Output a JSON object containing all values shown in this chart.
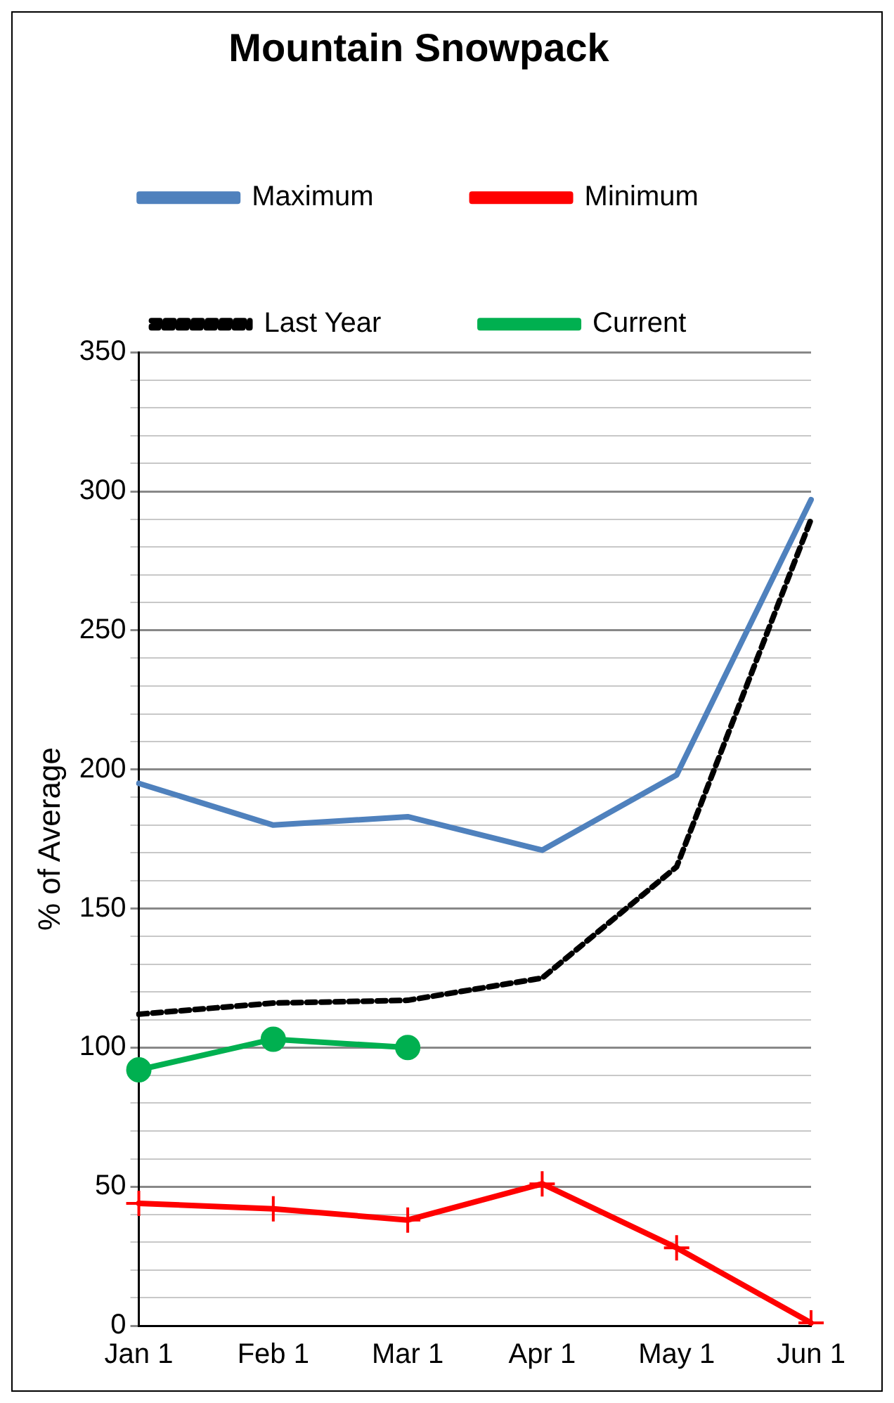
{
  "chart_data": {
    "type": "line",
    "title": "Mountain Snowpack",
    "ylabel": "% of Average",
    "categories": [
      "Jan 1",
      "Feb 1",
      "Mar 1",
      "Apr 1",
      "May 1",
      "Jun 1"
    ],
    "series": [
      {
        "name": "Maximum",
        "color": "#4f81bd",
        "values": [
          195,
          180,
          183,
          171,
          198,
          297
        ],
        "marker": "none",
        "line_style": "solid"
      },
      {
        "name": "Minimum",
        "color": "#ff0000",
        "values": [
          44,
          42,
          38,
          51,
          28,
          1
        ],
        "marker": "cross",
        "line_style": "solid"
      },
      {
        "name": "Last Year",
        "color": "#000000",
        "values": [
          112,
          116,
          117,
          125,
          165,
          290
        ],
        "marker": "none",
        "line_style": "dashed"
      },
      {
        "name": "Current",
        "color": "#00b050",
        "values": [
          92,
          103,
          100,
          null,
          null,
          null
        ],
        "marker": "circle",
        "line_style": "solid"
      }
    ],
    "ylim": [
      0,
      350
    ],
    "yticks": [
      0,
      {
        "value": 10,
        "label": null
      },
      {
        "value": 20,
        "label": null
      },
      {
        "value": 30,
        "label": null
      },
      {
        "value": 40,
        "label": null
      },
      50,
      {
        "value": 60,
        "label": null
      },
      {
        "value": 70,
        "label": null
      },
      {
        "value": 80,
        "label": null
      },
      {
        "value": 90,
        "label": null
      },
      100,
      {
        "value": 110,
        "label": null
      },
      {
        "value": 120,
        "label": null
      },
      {
        "value": 130,
        "label": null
      },
      {
        "value": 140,
        "label": null
      },
      150,
      {
        "value": 160,
        "label": null
      },
      {
        "value": 170,
        "label": null
      },
      {
        "value": 180,
        "label": null
      },
      {
        "value": 190,
        "label": null
      },
      200,
      {
        "value": 210,
        "label": null
      },
      {
        "value": 220,
        "label": null
      },
      {
        "value": 230,
        "label": null
      },
      {
        "value": 240,
        "label": null
      },
      250,
      {
        "value": 260,
        "label": null
      },
      {
        "value": 270,
        "label": null
      },
      {
        "value": 280,
        "label": null
      },
      {
        "value": 290,
        "label": null
      },
      300,
      {
        "value": 310,
        "label": null
      },
      {
        "value": 320,
        "label": null
      },
      {
        "value": 330,
        "label": null
      },
      {
        "value": 340,
        "label": null
      },
      350
    ],
    "grid": "y",
    "legend": "top"
  }
}
